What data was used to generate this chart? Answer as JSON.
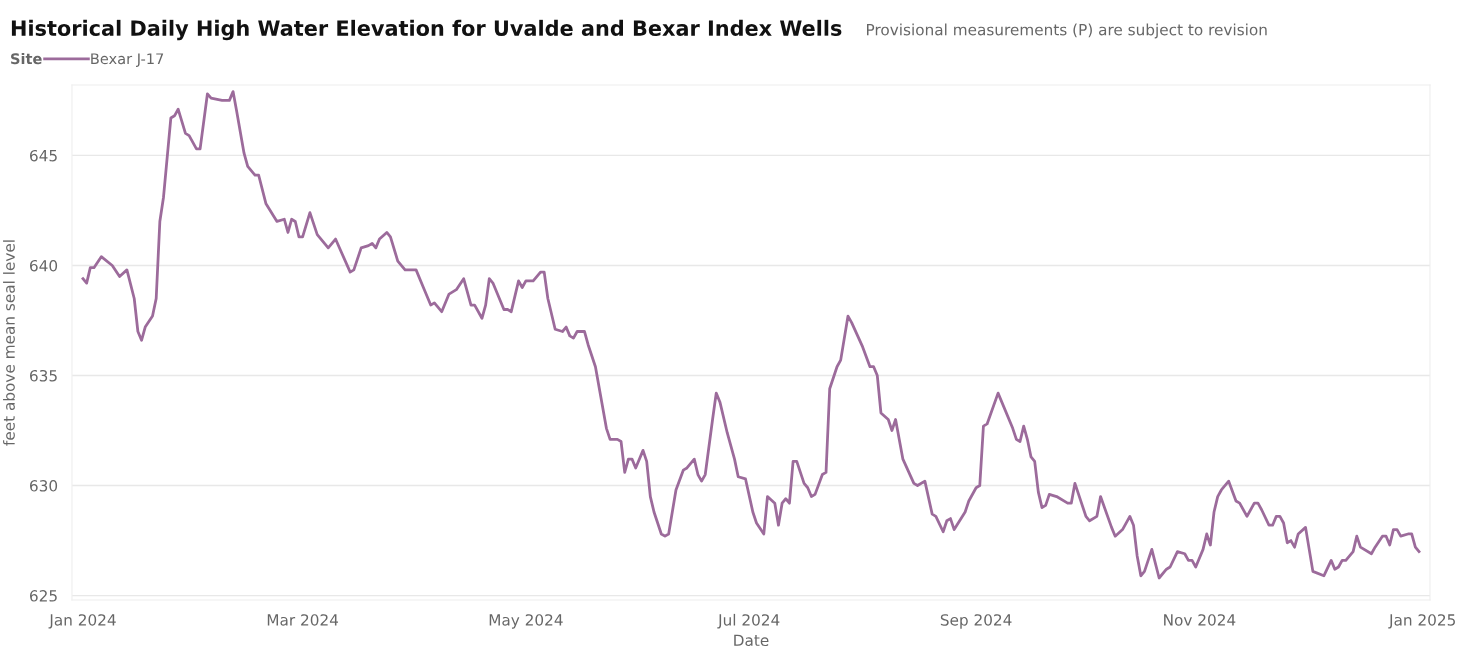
{
  "chart_data": {
    "type": "line",
    "title": "Historical Daily High Water Elevation for Uvalde and Bexar Index Wells",
    "subtitle": "Provisional measurements (P) are subject to revision",
    "xlabel": "Date",
    "ylabel": "feet above mean seal level",
    "legend_title": "Site",
    "legend": "top left",
    "grid": "y",
    "marker": "none",
    "line_style": "solid",
    "xlim": [
      "2023-12-29",
      "2025-01-03"
    ],
    "ylim": [
      624.8,
      648.2
    ],
    "xticks": [
      {
        "value": "2024-01-01",
        "label": "Jan 2024"
      },
      {
        "value": "2024-03-01",
        "label": "Mar 2024"
      },
      {
        "value": "2024-05-01",
        "label": "May 2024"
      },
      {
        "value": "2024-07-01",
        "label": "Jul 2024"
      },
      {
        "value": "2024-09-01",
        "label": "Sep 2024"
      },
      {
        "value": "2024-11-01",
        "label": "Nov 2024"
      },
      {
        "value": "2025-01-01",
        "label": "Jan 2025"
      }
    ],
    "yticks": [
      625,
      630,
      635,
      640,
      645
    ],
    "x": [
      "2024-01-01",
      "2024-01-02",
      "2024-01-03",
      "2024-01-04",
      "2024-01-06",
      "2024-01-09",
      "2024-01-11",
      "2024-01-13",
      "2024-01-15",
      "2024-01-16",
      "2024-01-17",
      "2024-01-18",
      "2024-01-20",
      "2024-01-21",
      "2024-01-22",
      "2024-01-23",
      "2024-01-25",
      "2024-01-26",
      "2024-01-27",
      "2024-01-29",
      "2024-01-30",
      "2024-02-01",
      "2024-02-02",
      "2024-02-04",
      "2024-02-05",
      "2024-02-08",
      "2024-02-10",
      "2024-02-11",
      "2024-02-12",
      "2024-02-14",
      "2024-02-15",
      "2024-02-17",
      "2024-02-18",
      "2024-02-20",
      "2024-02-23",
      "2024-02-25",
      "2024-02-26",
      "2024-02-27",
      "2024-02-28",
      "2024-02-29",
      "2024-03-01",
      "2024-03-03",
      "2024-03-05",
      "2024-03-08",
      "2024-03-10",
      "2024-03-14",
      "2024-03-15",
      "2024-03-17",
      "2024-03-19",
      "2024-03-20",
      "2024-03-21",
      "2024-03-22",
      "2024-03-24",
      "2024-03-25",
      "2024-03-27",
      "2024-03-29",
      "2024-03-31",
      "2024-04-01",
      "2024-04-03",
      "2024-04-04",
      "2024-04-05",
      "2024-04-06",
      "2024-04-08",
      "2024-04-10",
      "2024-04-12",
      "2024-04-14",
      "2024-04-16",
      "2024-04-17",
      "2024-04-19",
      "2024-04-20",
      "2024-04-21",
      "2024-04-22",
      "2024-04-25",
      "2024-04-26",
      "2024-04-27",
      "2024-04-29",
      "2024-04-30",
      "2024-05-01",
      "2024-05-03",
      "2024-05-05",
      "2024-05-06",
      "2024-05-07",
      "2024-05-09",
      "2024-05-11",
      "2024-05-12",
      "2024-05-13",
      "2024-05-14",
      "2024-05-15",
      "2024-05-17",
      "2024-05-18",
      "2024-05-20",
      "2024-05-23",
      "2024-05-24",
      "2024-05-26",
      "2024-05-27",
      "2024-05-28",
      "2024-05-29",
      "2024-05-30",
      "2024-05-31",
      "2024-06-02",
      "2024-06-03",
      "2024-06-04",
      "2024-06-05",
      "2024-06-07",
      "2024-06-08",
      "2024-06-09",
      "2024-06-11",
      "2024-06-13",
      "2024-06-14",
      "2024-06-16",
      "2024-06-17",
      "2024-06-18",
      "2024-06-19",
      "2024-06-21",
      "2024-06-22",
      "2024-06-23",
      "2024-06-25",
      "2024-06-27",
      "2024-06-28",
      "2024-06-30",
      "2024-07-02",
      "2024-07-03",
      "2024-07-05",
      "2024-07-06",
      "2024-07-08",
      "2024-07-09",
      "2024-07-10",
      "2024-07-11",
      "2024-07-12",
      "2024-07-13",
      "2024-07-14",
      "2024-07-16",
      "2024-07-17",
      "2024-07-18",
      "2024-07-19",
      "2024-07-21",
      "2024-07-22",
      "2024-07-23",
      "2024-07-25",
      "2024-07-26",
      "2024-07-28",
      "2024-07-29",
      "2024-08-01",
      "2024-08-03",
      "2024-08-04",
      "2024-08-05",
      "2024-08-06",
      "2024-08-08",
      "2024-08-09",
      "2024-08-10",
      "2024-08-12",
      "2024-08-15",
      "2024-08-16",
      "2024-08-18",
      "2024-08-20",
      "2024-08-21",
      "2024-08-23",
      "2024-08-24",
      "2024-08-25",
      "2024-08-26",
      "2024-08-29",
      "2024-08-30",
      "2024-09-01",
      "2024-09-02",
      "2024-09-03",
      "2024-09-04",
      "2024-09-07",
      "2024-09-11",
      "2024-09-12",
      "2024-09-13",
      "2024-09-14",
      "2024-09-15",
      "2024-09-16",
      "2024-09-17",
      "2024-09-18",
      "2024-09-19",
      "2024-09-20",
      "2024-09-21",
      "2024-09-23",
      "2024-09-26",
      "2024-09-27",
      "2024-09-28",
      "2024-10-01",
      "2024-10-02",
      "2024-10-04",
      "2024-10-05",
      "2024-10-08",
      "2024-10-09",
      "2024-10-11",
      "2024-10-13",
      "2024-10-14",
      "2024-10-15",
      "2024-10-16",
      "2024-10-17",
      "2024-10-19",
      "2024-10-21",
      "2024-10-23",
      "2024-10-24",
      "2024-10-26",
      "2024-10-28",
      "2024-10-29",
      "2024-10-30",
      "2024-10-31",
      "2024-11-02",
      "2024-11-03",
      "2024-11-04",
      "2024-11-05",
      "2024-11-06",
      "2024-11-07",
      "2024-11-09",
      "2024-11-11",
      "2024-11-12",
      "2024-11-14",
      "2024-11-16",
      "2024-11-17",
      "2024-11-18",
      "2024-11-20",
      "2024-11-21",
      "2024-11-22",
      "2024-11-23",
      "2024-11-24",
      "2024-11-25",
      "2024-11-26",
      "2024-11-27",
      "2024-11-28",
      "2024-11-30",
      "2024-12-02",
      "2024-12-05",
      "2024-12-07",
      "2024-12-08",
      "2024-12-09",
      "2024-12-10",
      "2024-12-11",
      "2024-12-13",
      "2024-12-14",
      "2024-12-15",
      "2024-12-18",
      "2024-12-19",
      "2024-12-21",
      "2024-12-22",
      "2024-12-23",
      "2024-12-24",
      "2024-12-25",
      "2024-12-26",
      "2024-12-28",
      "2024-12-29",
      "2024-12-30",
      "2024-12-31"
    ],
    "series": [
      {
        "name": "Bexar J-17",
        "color": "#9c6b9b",
        "values": [
          639.4,
          639.2,
          639.9,
          639.9,
          640.4,
          640.0,
          639.5,
          639.8,
          638.5,
          637.0,
          636.6,
          637.2,
          637.7,
          638.5,
          642.0,
          643.1,
          646.7,
          646.8,
          647.1,
          646.0,
          645.9,
          645.3,
          645.3,
          647.8,
          647.6,
          647.5,
          647.5,
          647.9,
          647.0,
          645.1,
          644.5,
          644.1,
          644.1,
          642.8,
          642.0,
          642.1,
          641.5,
          642.1,
          642.0,
          641.3,
          641.3,
          642.4,
          641.4,
          640.8,
          641.2,
          639.7,
          639.8,
          640.8,
          640.9,
          641.0,
          640.8,
          641.2,
          641.5,
          641.3,
          640.2,
          639.8,
          639.8,
          639.8,
          639.0,
          638.6,
          638.2,
          638.3,
          637.9,
          638.7,
          638.9,
          639.4,
          638.2,
          638.2,
          637.6,
          638.2,
          639.4,
          639.2,
          638.0,
          638.0,
          637.9,
          639.3,
          639.0,
          639.3,
          639.3,
          639.7,
          639.7,
          638.5,
          637.1,
          637.0,
          637.2,
          636.8,
          636.7,
          637.0,
          637.0,
          636.4,
          635.4,
          632.6,
          632.1,
          632.1,
          632.0,
          630.6,
          631.2,
          631.2,
          630.8,
          631.6,
          631.1,
          629.5,
          628.8,
          627.8,
          627.7,
          627.8,
          629.8,
          630.7,
          630.8,
          631.2,
          630.5,
          630.2,
          630.5,
          633.0,
          634.2,
          633.8,
          632.4,
          631.2,
          630.4,
          630.3,
          628.8,
          628.3,
          627.8,
          629.5,
          629.2,
          628.2,
          629.2,
          629.4,
          629.2,
          631.1,
          631.1,
          630.1,
          629.9,
          629.5,
          629.6,
          630.5,
          630.6,
          634.4,
          635.4,
          635.7,
          637.7,
          637.4,
          636.3,
          635.4,
          635.4,
          635.0,
          633.3,
          633.0,
          632.5,
          633.0,
          631.2,
          630.1,
          630.0,
          630.2,
          628.7,
          628.6,
          627.9,
          628.4,
          628.5,
          628.0,
          628.8,
          629.3,
          629.9,
          630.0,
          632.7,
          632.8,
          634.2,
          632.6,
          632.1,
          632.0,
          632.7,
          632.1,
          631.3,
          631.1,
          629.7,
          629.0,
          629.1,
          629.6,
          629.5,
          629.2,
          629.2,
          630.1,
          628.6,
          628.4,
          628.6,
          629.5,
          628.1,
          627.7,
          628.0,
          628.6,
          628.2,
          626.8,
          625.9,
          626.1,
          627.1,
          625.8,
          626.2,
          626.3,
          627.0,
          626.9,
          626.6,
          626.6,
          626.3,
          627.1,
          627.8,
          627.3,
          628.8,
          629.5,
          629.8,
          630.2,
          629.3,
          629.2,
          628.6,
          629.2,
          629.2,
          628.9,
          628.2,
          628.2,
          628.6,
          628.6,
          628.3,
          627.4,
          627.5,
          627.2,
          627.8,
          628.1,
          626.1,
          625.9,
          626.6,
          626.2,
          626.3,
          626.6,
          626.6,
          627.0,
          627.7,
          627.2,
          626.9,
          627.2,
          627.7,
          627.7,
          627.3,
          628.0,
          628.0,
          627.7,
          627.8,
          627.8,
          627.2,
          627.0
        ]
      }
    ]
  }
}
